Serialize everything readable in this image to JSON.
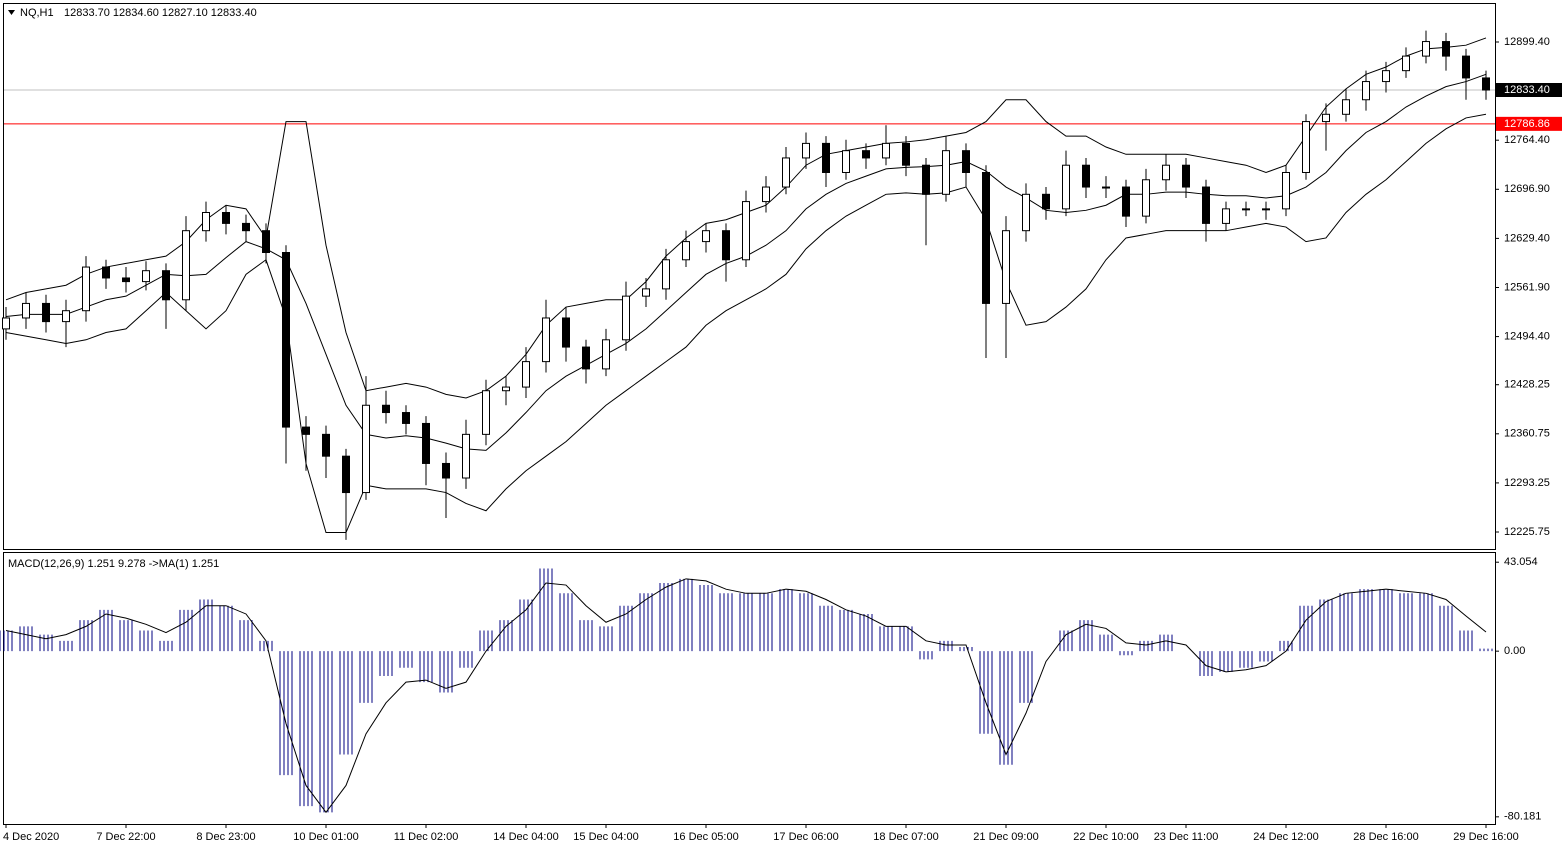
{
  "chart_data": [
    {
      "type": "candlestick",
      "title": "NQ,H1",
      "subtitle": "12833.70 12834.60 12827.10 12833.40",
      "categories": [
        "4 Dec 2020",
        null,
        null,
        null,
        null,
        null,
        "7 Dec 22:00",
        null,
        null,
        null,
        null,
        "8 Dec 23:00",
        null,
        null,
        null,
        null,
        "10 Dec 01:00",
        null,
        null,
        null,
        null,
        "11 Dec 02:00",
        null,
        null,
        null,
        null,
        "14 Dec 04:00",
        null,
        null,
        null,
        "15 Dec 04:00",
        null,
        null,
        null,
        null,
        "16 Dec 05:00",
        null,
        null,
        null,
        null,
        "17 Dec 06:00",
        null,
        null,
        null,
        null,
        "18 Dec 07:00",
        null,
        null,
        null,
        null,
        "21 Dec 09:00",
        null,
        null,
        null,
        null,
        "22 Dec 10:00",
        null,
        null,
        null,
        "23 Dec 11:00",
        null,
        null,
        null,
        null,
        "24 Dec 12:00",
        null,
        null,
        null,
        null,
        "28 Dec 16:00",
        null,
        null,
        null,
        null,
        "29 Dec 16:00"
      ],
      "open": [
        12505,
        12520,
        12540,
        12515,
        12530,
        12590,
        12575,
        12570,
        12585,
        12545,
        12640,
        12665,
        12650,
        12640,
        12610,
        12370,
        12360,
        12330,
        12280,
        12400,
        12390,
        12375,
        12320,
        12300,
        12360,
        12420,
        12425,
        12460,
        12520,
        12480,
        12450,
        12490,
        12550,
        12560,
        12600,
        12625,
        12640,
        12600,
        12680,
        12700,
        12740,
        12760,
        12720,
        12750,
        12740,
        12760,
        12730,
        12690,
        12750,
        12720,
        12540,
        12640,
        12690,
        12670,
        12730,
        12700,
        12700,
        12660,
        12710,
        12730,
        12700,
        12650,
        12670,
        12670,
        12670,
        12720,
        12790,
        12800,
        12820,
        12845,
        12860,
        12880,
        12900,
        12880,
        12850
      ],
      "high": [
        12535,
        12555,
        12552,
        12545,
        12605,
        12600,
        12590,
        12598,
        12595,
        12660,
        12680,
        12675,
        12662,
        12650,
        12620,
        12385,
        12372,
        12340,
        12440,
        12420,
        12400,
        12385,
        12335,
        12380,
        12435,
        12440,
        12480,
        12545,
        12535,
        12490,
        12505,
        12570,
        12575,
        12615,
        12640,
        12650,
        12650,
        12695,
        12715,
        12755,
        12775,
        12770,
        12765,
        12760,
        12785,
        12770,
        12740,
        12770,
        12760,
        12730,
        12660,
        12705,
        12700,
        12750,
        12740,
        12715,
        12710,
        12725,
        12745,
        12740,
        12710,
        12680,
        12680,
        12680,
        12730,
        12800,
        12815,
        12835,
        12860,
        12872,
        12892,
        12915,
        12912,
        12890,
        12860
      ],
      "low": [
        12490,
        12505,
        12500,
        12480,
        12515,
        12560,
        12555,
        12558,
        12505,
        12530,
        12625,
        12635,
        12625,
        12595,
        12320,
        12310,
        12300,
        12215,
        12270,
        12375,
        12360,
        12290,
        12245,
        12285,
        12345,
        12400,
        12410,
        12445,
        12460,
        12430,
        12440,
        12475,
        12535,
        12545,
        12590,
        12610,
        12570,
        12590,
        12665,
        12690,
        12725,
        12700,
        12710,
        12725,
        12730,
        12715,
        12620,
        12680,
        12700,
        12465,
        12465,
        12625,
        12655,
        12660,
        12685,
        12685,
        12645,
        12650,
        12695,
        12685,
        12625,
        12640,
        12660,
        12655,
        12660,
        12710,
        12750,
        12790,
        12805,
        12830,
        12850,
        12870,
        12860,
        12820,
        12820
      ],
      "close": [
        12520,
        12540,
        12515,
        12530,
        12590,
        12575,
        12570,
        12585,
        12545,
        12640,
        12665,
        12650,
        12640,
        12610,
        12370,
        12360,
        12330,
        12280,
        12400,
        12390,
        12375,
        12320,
        12300,
        12360,
        12420,
        12425,
        12460,
        12520,
        12480,
        12450,
        12490,
        12550,
        12560,
        12600,
        12625,
        12640,
        12600,
        12680,
        12700,
        12740,
        12760,
        12720,
        12750,
        12740,
        12760,
        12730,
        12690,
        12750,
        12720,
        12540,
        12640,
        12690,
        12670,
        12730,
        12700,
        12700,
        12660,
        12710,
        12730,
        12700,
        12650,
        12670,
        12670,
        12670,
        12720,
        12790,
        12800,
        12820,
        12845,
        12860,
        12880,
        12900,
        12880,
        12850,
        12833.4
      ],
      "color_up": "#ffffff",
      "color_down": "#000000",
      "color_edge": "#000000",
      "series": [
        {
          "color": "#000000",
          "values": [
            12545,
            12555,
            12560,
            12565,
            12580,
            12590,
            12595,
            12600,
            12605,
            12625,
            12655,
            12675,
            12670,
            12630,
            12790,
            12790,
            12620,
            12500,
            12420,
            12425,
            12430,
            12425,
            12415,
            12410,
            12420,
            12440,
            12470,
            12510,
            12535,
            12540,
            12545,
            12545,
            12570,
            12605,
            12630,
            12650,
            12655,
            12665,
            12675,
            12700,
            12730,
            12745,
            12750,
            12755,
            12760,
            12762,
            12765,
            12770,
            12775,
            12790,
            12820,
            12820,
            12790,
            12770,
            12770,
            12755,
            12745,
            12745,
            12745,
            12745,
            12740,
            12735,
            12730,
            12720,
            12730,
            12770,
            12810,
            12835,
            12855,
            12865,
            12880,
            12890,
            12892,
            12895,
            12905
          ]
        },
        {
          "color": "#000000",
          "values": [
            12522,
            12525,
            12525,
            12525,
            12535,
            12545,
            12550,
            12565,
            12580,
            12578,
            12580,
            12603,
            12625,
            12615,
            12600,
            12540,
            12470,
            12400,
            12360,
            12355,
            12358,
            12355,
            12348,
            12340,
            12338,
            12362,
            12390,
            12420,
            12440,
            12455,
            12470,
            12485,
            12505,
            12530,
            12555,
            12580,
            12595,
            12605,
            12620,
            12640,
            12670,
            12690,
            12705,
            12715,
            12725,
            12727,
            12728,
            12730,
            12735,
            12722,
            12700,
            12685,
            12668,
            12665,
            12668,
            12675,
            12690,
            12690,
            12693,
            12693,
            12690,
            12688,
            12688,
            12685,
            12688,
            12700,
            12720,
            12750,
            12775,
            12790,
            12810,
            12825,
            12838,
            12845,
            12855
          ]
        },
        {
          "color": "#000000",
          "values": [
            12500,
            12495,
            12490,
            12485,
            12490,
            12500,
            12505,
            12530,
            12555,
            12530,
            12505,
            12530,
            12580,
            12600,
            12520,
            12320,
            12225,
            12225,
            12290,
            12285,
            12285,
            12285,
            12280,
            12265,
            12255,
            12285,
            12310,
            12330,
            12350,
            12375,
            12400,
            12420,
            12440,
            12460,
            12480,
            12510,
            12530,
            12545,
            12560,
            12580,
            12615,
            12640,
            12660,
            12675,
            12690,
            12692,
            12690,
            12692,
            12700,
            12655,
            12570,
            12510,
            12515,
            12535,
            12560,
            12600,
            12630,
            12635,
            12640,
            12640,
            12640,
            12640,
            12645,
            12650,
            12645,
            12625,
            12630,
            12665,
            12690,
            12710,
            12735,
            12760,
            12780,
            12795,
            12800
          ]
        }
      ],
      "levels": [
        {
          "value": 12833.4,
          "label": "12833.40",
          "color": "#c0c0c0",
          "label_bg": "#000000",
          "label_color": "#ffffff"
        },
        {
          "value": 12786.86,
          "label": "12786.86",
          "color": "#ff0000",
          "label_bg": "#ff0000",
          "label_color": "#ffffff"
        }
      ],
      "ylim": [
        12202.4,
        12953.0
      ],
      "yticks": [
        {
          "value": 12899.4,
          "label": "12899.40"
        },
        {
          "value": 12764.4,
          "label": "12764.40"
        },
        {
          "value": 12696.9,
          "label": "12696.90"
        },
        {
          "value": 12629.4,
          "label": "12629.40"
        },
        {
          "value": 12561.9,
          "label": "12561.90"
        },
        {
          "value": 12494.4,
          "label": "12494.40"
        },
        12428.25,
        12360.75,
        12293.25,
        12225.75
      ]
    },
    {
      "type": "macd",
      "title": "MACD(12,26,9) 1.251 9.278  ->MA(1) 1.251",
      "series": [
        {
          "color": "#000080",
          "style": "bar",
          "values": [
            10,
            12,
            8,
            5,
            15,
            20,
            15,
            10,
            5,
            20,
            25,
            22,
            15,
            5,
            -60,
            -75,
            -78,
            -50,
            -25,
            -12,
            -8,
            -15,
            -20,
            -8,
            10,
            15,
            25,
            40,
            28,
            15,
            12,
            22,
            28,
            33,
            35,
            32,
            28,
            28,
            28,
            30,
            28,
            22,
            20,
            18,
            12,
            12,
            -4,
            5,
            2,
            -40,
            -55,
            -25,
            0,
            10,
            15,
            8,
            -2,
            5,
            8,
            0,
            -12,
            -10,
            -8,
            -5,
            5,
            22,
            25,
            28,
            30,
            30,
            28,
            28,
            22,
            10,
            1.251
          ]
        },
        {
          "color": "#000000",
          "style": "line",
          "values": [
            10,
            8,
            6,
            8,
            12,
            18,
            16,
            13,
            9,
            14,
            22,
            22,
            18,
            5,
            -35,
            -65,
            -78,
            -65,
            -40,
            -25,
            -15,
            -14,
            -18,
            -15,
            0,
            12,
            20,
            33,
            32,
            22,
            14,
            18,
            25,
            31,
            35,
            34,
            30,
            28,
            28,
            30,
            29,
            25,
            20,
            17,
            12,
            12,
            5,
            3,
            3,
            -25,
            -50,
            -30,
            -5,
            8,
            13,
            11,
            4,
            3,
            5,
            3,
            -7,
            -10,
            -9,
            -7,
            0,
            15,
            24,
            28,
            29,
            30,
            29,
            28,
            25,
            17,
            9.278
          ]
        }
      ],
      "ylim": [
        -83.65,
        47.51
      ],
      "yticks": [
        43.054,
        {
          "value": 0,
          "label": "0.00"
        },
        -80.181
      ]
    }
  ]
}
